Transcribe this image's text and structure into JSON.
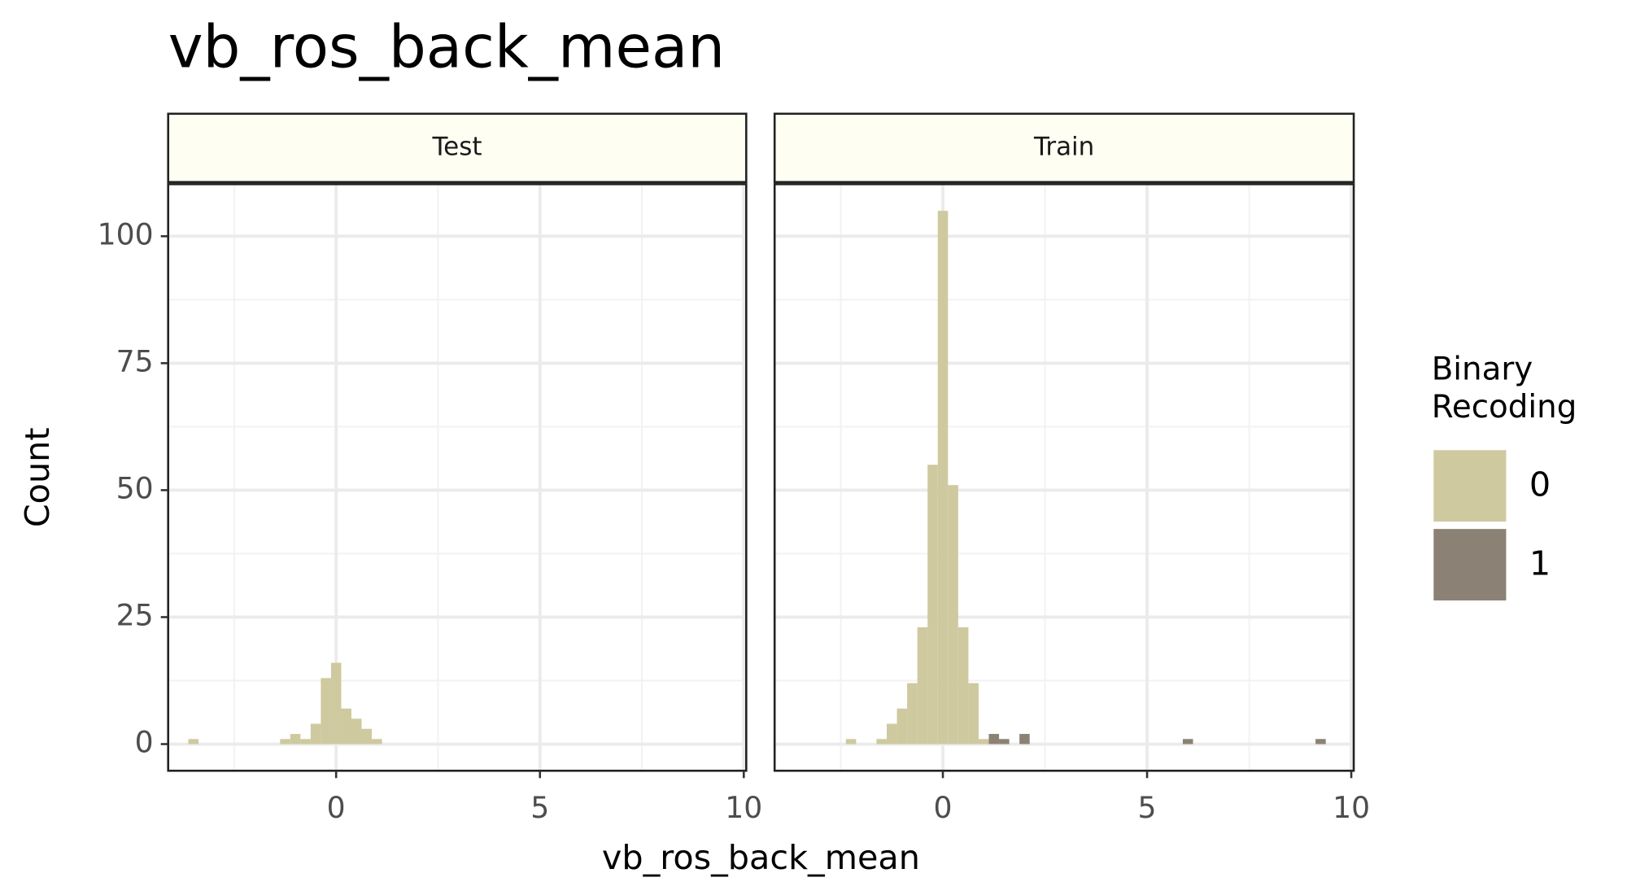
{
  "title": "vb_ros_back_mean",
  "xlabel": "vb_ros_back_mean",
  "ylabel": "Count",
  "legend_title": "Binary Recoding",
  "legend_position": "right",
  "chart_data": [
    {
      "type": "histogram",
      "title": "Test",
      "bins": [
        -3.625,
        -3.375,
        -3.125,
        -2.875,
        -2.625,
        -2.375,
        -2.125,
        -1.875,
        -1.625,
        -1.375,
        -1.125,
        -0.875,
        -0.625,
        -0.375,
        -0.125,
        0.125,
        0.375,
        0.625,
        0.875,
        1.125
      ],
      "series": [
        {
          "name": "0",
          "color": "#cfc9a0",
          "values": [
            1,
            0,
            0,
            0,
            0,
            0,
            0,
            0,
            0,
            1,
            2,
            1,
            4,
            13,
            16,
            7,
            5,
            3,
            1
          ]
        },
        {
          "name": "1",
          "color": "#8b8275",
          "values": [
            0,
            0,
            0,
            0,
            0,
            0,
            0,
            0,
            0,
            0,
            0,
            0,
            0,
            0,
            0,
            0,
            0,
            0,
            0
          ]
        }
      ],
      "xlim": [
        -4.12,
        10.06
      ],
      "xticks": [
        0,
        5,
        10
      ],
      "xminor": [
        -2.5,
        2.5,
        7.5
      ],
      "ylim": [
        -5.25,
        110.25
      ],
      "yticks": [
        0,
        25,
        50,
        75,
        100
      ],
      "yminor": [
        12.5,
        37.5,
        62.5,
        87.5
      ],
      "grid": true,
      "stacked": true
    },
    {
      "type": "histogram",
      "title": "Train",
      "bins": [
        -2.375,
        -2.125,
        -1.875,
        -1.625,
        -1.375,
        -1.125,
        -0.875,
        -0.625,
        -0.375,
        -0.125,
        0.125,
        0.375,
        0.625,
        0.875,
        1.125,
        1.375,
        1.625,
        1.875,
        2.125,
        2.375,
        2.625,
        2.875,
        3.125,
        3.375,
        3.625,
        3.875,
        4.125,
        4.375,
        4.625,
        4.875,
        5.125,
        5.375,
        5.625,
        5.875,
        6.125,
        6.375,
        6.625,
        6.875,
        7.125,
        7.375,
        7.625,
        7.875,
        8.125,
        8.375,
        8.625,
        8.875,
        9.125,
        9.375
      ],
      "series": [
        {
          "name": "0",
          "color": "#cfc9a0",
          "values": [
            1,
            0,
            0,
            1,
            4,
            7,
            12,
            23,
            55,
            105,
            51,
            23,
            12,
            1,
            0,
            0,
            0,
            0,
            0,
            0,
            0,
            0,
            0,
            0,
            0,
            0,
            0,
            0,
            0,
            0,
            0,
            0,
            0,
            0,
            0,
            0,
            0,
            0,
            0,
            0,
            0,
            0,
            0,
            0,
            0,
            0,
            0
          ]
        },
        {
          "name": "1",
          "color": "#8b8275",
          "values": [
            0,
            0,
            0,
            0,
            0,
            0,
            0,
            0,
            0,
            0,
            0,
            0,
            0,
            0,
            2,
            1,
            0,
            2,
            0,
            0,
            0,
            0,
            0,
            0,
            0,
            0,
            0,
            0,
            0,
            0,
            0,
            0,
            0,
            1,
            0,
            0,
            0,
            0,
            0,
            0,
            0,
            0,
            0,
            0,
            0,
            0,
            1
          ]
        }
      ],
      "xlim": [
        -4.12,
        10.06
      ],
      "xticks": [
        0,
        5,
        10
      ],
      "xminor": [
        -2.5,
        2.5,
        7.5
      ],
      "ylim": [
        -5.25,
        110.25
      ],
      "yticks": [
        0,
        25,
        50,
        75,
        100
      ],
      "yminor": [
        12.5,
        37.5,
        62.5,
        87.5
      ],
      "grid": true,
      "stacked": true
    }
  ]
}
